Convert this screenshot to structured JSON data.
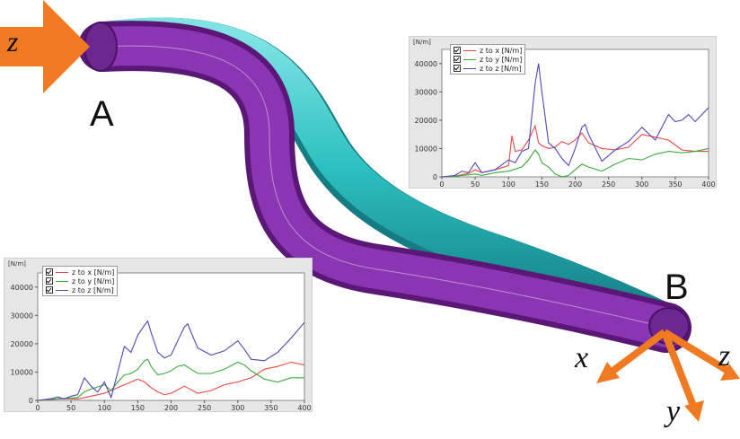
{
  "labels": {
    "point_a": "A",
    "point_b": "B",
    "input_axis": "z",
    "axis_x": "x",
    "axis_y": "y",
    "axis_z": "z"
  },
  "colors": {
    "arrow": "#f07a22",
    "purple_tube": "#7a2a9a",
    "cyan_tube": "#2ec4c4"
  },
  "chart_data": [
    {
      "type": "line",
      "position": "top-right",
      "ylabel": "[N/m]",
      "xlim": [
        0,
        400
      ],
      "ylim": [
        0,
        45000
      ],
      "xticks": [
        0,
        50,
        100,
        150,
        200,
        250,
        300,
        350,
        400
      ],
      "yticks": [
        0,
        10000,
        20000,
        30000,
        40000
      ],
      "legend_placement": "top-left",
      "series": [
        {
          "name": "z to x [N/m]",
          "color": "#e8473f",
          "x": [
            0,
            20,
            30,
            40,
            50,
            60,
            80,
            100,
            105,
            110,
            120,
            130,
            140,
            145,
            150,
            160,
            170,
            180,
            190,
            200,
            210,
            220,
            240,
            260,
            280,
            300,
            320,
            340,
            360,
            380,
            400
          ],
          "y": [
            0,
            200,
            800,
            1200,
            2500,
            1500,
            2500,
            4000,
            14500,
            9000,
            9500,
            13000,
            18000,
            12000,
            11000,
            10000,
            10500,
            12500,
            11500,
            13000,
            15500,
            12000,
            10000,
            9500,
            10500,
            15000,
            14000,
            13000,
            9500,
            9000,
            9000
          ]
        },
        {
          "name": "z to y [N/m]",
          "color": "#3aaa3a",
          "x": [
            0,
            20,
            30,
            40,
            50,
            60,
            80,
            100,
            120,
            130,
            140,
            145,
            150,
            160,
            170,
            180,
            190,
            200,
            210,
            220,
            240,
            260,
            280,
            300,
            320,
            340,
            360,
            380,
            400
          ],
          "y": [
            0,
            200,
            500,
            700,
            1000,
            500,
            1500,
            2000,
            3500,
            6000,
            9500,
            8000,
            5000,
            3500,
            1000,
            0,
            500,
            2500,
            4500,
            3500,
            2000,
            4500,
            6500,
            6000,
            8000,
            9000,
            8500,
            9000,
            10000
          ]
        },
        {
          "name": "z to z [N/m]",
          "color": "#4f46b8",
          "x": [
            0,
            20,
            30,
            40,
            50,
            60,
            80,
            100,
            110,
            120,
            130,
            140,
            145,
            150,
            160,
            170,
            180,
            190,
            200,
            210,
            215,
            220,
            240,
            260,
            280,
            300,
            320,
            340,
            350,
            360,
            370,
            380,
            400
          ],
          "y": [
            0,
            500,
            2000,
            1500,
            5000,
            1500,
            2500,
            6000,
            5000,
            9000,
            10000,
            33000,
            40000,
            30000,
            12000,
            10000,
            6500,
            4000,
            10000,
            17500,
            18500,
            15000,
            5500,
            9500,
            12500,
            17500,
            13000,
            22000,
            19500,
            20000,
            22000,
            19500,
            24500
          ]
        }
      ]
    },
    {
      "type": "line",
      "position": "bottom-left",
      "ylabel": "[N/m]",
      "xlim": [
        0,
        400
      ],
      "ylim": [
        0,
        45000
      ],
      "xticks": [
        0,
        50,
        100,
        150,
        200,
        250,
        300,
        350,
        400
      ],
      "yticks": [
        0,
        10000,
        20000,
        30000,
        40000
      ],
      "legend_placement": "top-left",
      "series": [
        {
          "name": "z to x [N/m]",
          "color": "#e8473f",
          "x": [
            0,
            20,
            40,
            60,
            80,
            100,
            120,
            140,
            150,
            160,
            170,
            180,
            190,
            200,
            220,
            240,
            260,
            280,
            300,
            320,
            340,
            360,
            380,
            390,
            400
          ],
          "y": [
            0,
            300,
            600,
            500,
            1500,
            2500,
            4500,
            6500,
            7500,
            6500,
            4500,
            3000,
            2000,
            2500,
            5000,
            2500,
            3500,
            5500,
            6500,
            8000,
            11000,
            12000,
            13500,
            13000,
            12500
          ]
        },
        {
          "name": "z to y [N/m]",
          "color": "#3aaa3a",
          "x": [
            0,
            20,
            40,
            60,
            70,
            80,
            100,
            110,
            120,
            130,
            140,
            150,
            160,
            165,
            170,
            180,
            190,
            200,
            210,
            220,
            230,
            240,
            260,
            280,
            300,
            310,
            320,
            340,
            360,
            380,
            400
          ],
          "y": [
            0,
            400,
            700,
            1000,
            3000,
            4000,
            5500,
            3500,
            6500,
            9000,
            9500,
            11000,
            14000,
            14500,
            12000,
            9000,
            9500,
            10500,
            12000,
            12500,
            11000,
            9500,
            9500,
            11000,
            13500,
            12500,
            10500,
            7500,
            6500,
            8000,
            8000
          ]
        },
        {
          "name": "z to z [N/m]",
          "color": "#4f46b8",
          "x": [
            0,
            20,
            30,
            40,
            50,
            60,
            70,
            80,
            90,
            100,
            110,
            120,
            130,
            140,
            150,
            160,
            165,
            170,
            180,
            190,
            200,
            210,
            220,
            225,
            230,
            240,
            260,
            280,
            300,
            310,
            320,
            340,
            360,
            380,
            400
          ],
          "y": [
            0,
            600,
            1200,
            500,
            1500,
            2000,
            8000,
            5000,
            3000,
            6500,
            1000,
            10000,
            19000,
            17000,
            23000,
            26500,
            28000,
            24000,
            17000,
            15000,
            16000,
            21000,
            26000,
            27000,
            24000,
            18500,
            16000,
            17500,
            21000,
            18000,
            14500,
            14000,
            17000,
            22000,
            27500
          ]
        }
      ]
    }
  ]
}
